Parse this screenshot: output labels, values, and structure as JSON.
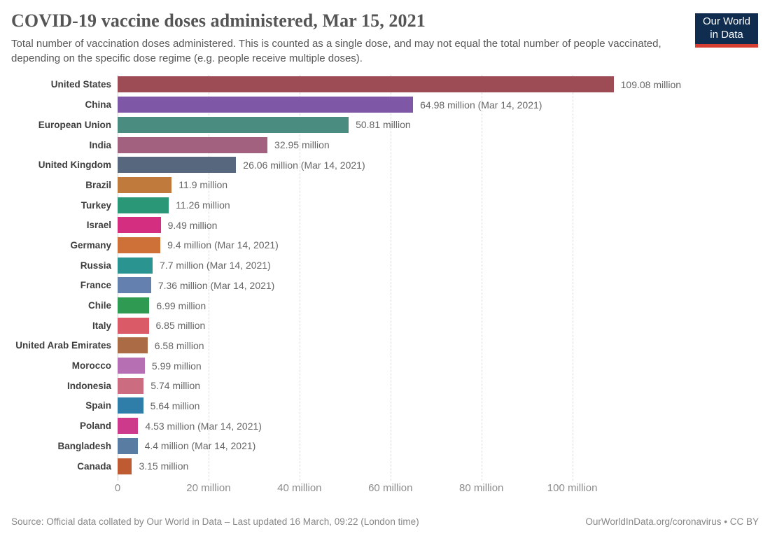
{
  "header": {
    "title": "COVID-19 vaccine doses administered, Mar 15, 2021",
    "subtitle": "Total number of vaccination doses administered. This is counted as a single dose, and may not equal the total number of people vaccinated, depending on the specific dose regime (e.g. people receive multiple doses)."
  },
  "logo": {
    "line1": "Our World",
    "line2": "in Data",
    "background_color": "#102d50",
    "accent_color": "#d63e32"
  },
  "chart_data": {
    "type": "bar",
    "orientation": "horizontal",
    "title": "COVID-19 vaccine doses administered, Mar 15, 2021",
    "xlabel": "",
    "ylabel": "",
    "grid": "dashed-vertical",
    "x_axis_extent_millions": 141,
    "x_ticks": [
      {
        "value_millions": 0,
        "label": "0"
      },
      {
        "value_millions": 20,
        "label": "20 million"
      },
      {
        "value_millions": 40,
        "label": "40 million"
      },
      {
        "value_millions": 60,
        "label": "60 million"
      },
      {
        "value_millions": 80,
        "label": "80 million"
      },
      {
        "value_millions": 100,
        "label": "100 million"
      }
    ],
    "rows": [
      {
        "label": "United States",
        "value_millions": 109.08,
        "value_label": "109.08 million",
        "color": "#9d4b54"
      },
      {
        "label": "China",
        "value_millions": 64.98,
        "value_label": "64.98 million (Mar 14, 2021)",
        "color": "#7e58a6"
      },
      {
        "label": "European Union",
        "value_millions": 50.81,
        "value_label": "50.81 million",
        "color": "#4a8c80"
      },
      {
        "label": "India",
        "value_millions": 32.95,
        "value_label": "32.95 million",
        "color": "#a2617e"
      },
      {
        "label": "United Kingdom",
        "value_millions": 26.06,
        "value_label": "26.06 million (Mar 14, 2021)",
        "color": "#57687e"
      },
      {
        "label": "Brazil",
        "value_millions": 11.9,
        "value_label": "11.9 million",
        "color": "#c07b3c"
      },
      {
        "label": "Turkey",
        "value_millions": 11.26,
        "value_label": "11.26 million",
        "color": "#2a9877"
      },
      {
        "label": "Israel",
        "value_millions": 9.49,
        "value_label": "9.49 million",
        "color": "#d32e80"
      },
      {
        "label": "Germany",
        "value_millions": 9.4,
        "value_label": "9.4 million (Mar 14, 2021)",
        "color": "#cd7138"
      },
      {
        "label": "Russia",
        "value_millions": 7.7,
        "value_label": "7.7 million (Mar 14, 2021)",
        "color": "#2a9490"
      },
      {
        "label": "France",
        "value_millions": 7.36,
        "value_label": "7.36 million (Mar 14, 2021)",
        "color": "#6380ae"
      },
      {
        "label": "Chile",
        "value_millions": 6.99,
        "value_label": "6.99 million",
        "color": "#2f9a52"
      },
      {
        "label": "Italy",
        "value_millions": 6.85,
        "value_label": "6.85 million",
        "color": "#db5a68"
      },
      {
        "label": "United Arab Emirates",
        "value_millions": 6.58,
        "value_label": "6.58 million",
        "color": "#aa6b45"
      },
      {
        "label": "Morocco",
        "value_millions": 5.99,
        "value_label": "5.99 million",
        "color": "#b66fb2"
      },
      {
        "label": "Indonesia",
        "value_millions": 5.74,
        "value_label": "5.74 million",
        "color": "#cc6c80"
      },
      {
        "label": "Spain",
        "value_millions": 5.64,
        "value_label": "5.64 million",
        "color": "#2f7ea9"
      },
      {
        "label": "Poland",
        "value_millions": 4.53,
        "value_label": "4.53 million (Mar 14, 2021)",
        "color": "#ce3a8b"
      },
      {
        "label": "Bangladesh",
        "value_millions": 4.4,
        "value_label": "4.4 million (Mar 14, 2021)",
        "color": "#587ca2"
      },
      {
        "label": "Canada",
        "value_millions": 3.15,
        "value_label": "3.15 million",
        "color": "#bf5b32"
      }
    ]
  },
  "footer": {
    "source": "Source: Official data collated by Our World in Data – Last updated 16 March, 09:22 (London time)",
    "link": "OurWorldInData.org/coronavirus • CC BY"
  }
}
